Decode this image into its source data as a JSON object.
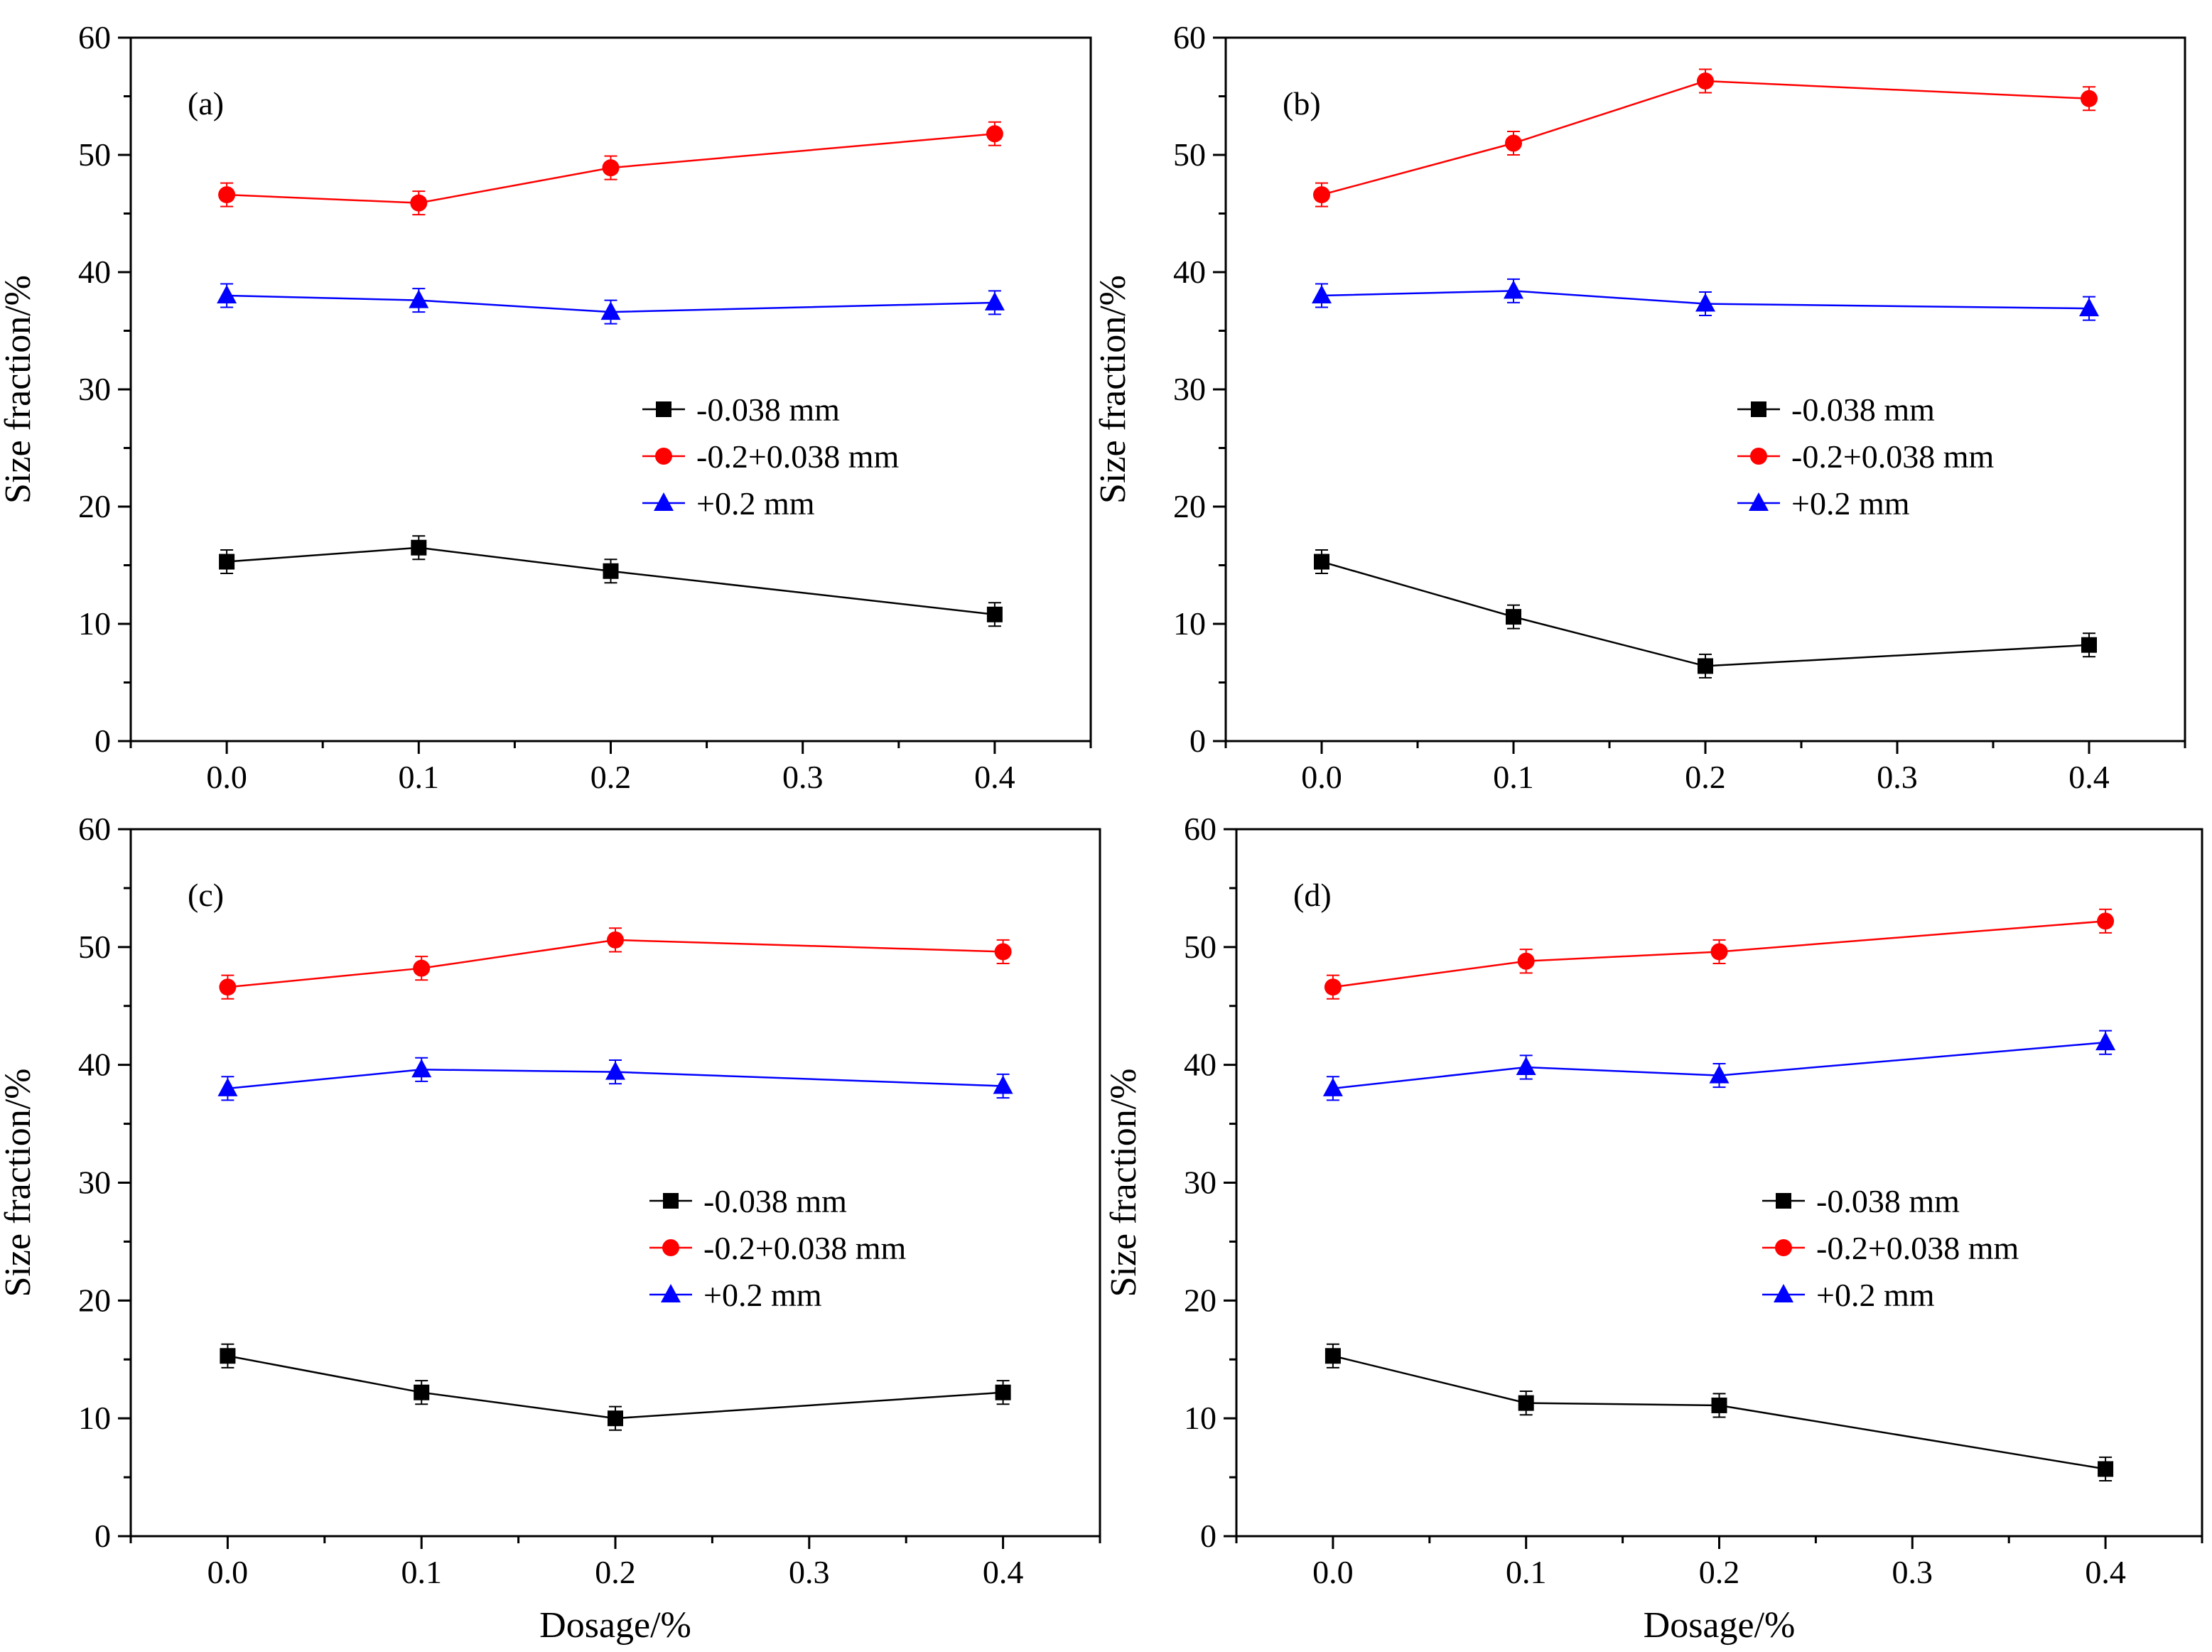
{
  "figure": {
    "shared_xlabel": "Dosage/%",
    "ylabel": "Size fraction/%"
  },
  "chart_data": [
    {
      "type": "line",
      "panel_label": "(a)",
      "x": [
        0.0,
        0.1,
        0.2,
        0.4
      ],
      "xlim": [
        -0.05,
        0.45
      ],
      "ylim": [
        0,
        60
      ],
      "xticks": [
        "0.0",
        "0.1",
        "0.2",
        "0.3",
        "0.4"
      ],
      "yticks": [
        "0",
        "10",
        "20",
        "30",
        "40",
        "50",
        "60"
      ],
      "xlabel": "",
      "ylabel": "Size fraction/%",
      "legend_position": "center-right",
      "series": [
        {
          "name": "-0.038 mm",
          "marker": "square",
          "color": "#000000",
          "values": [
            15.3,
            16.5,
            14.5,
            10.8
          ],
          "error": 1.0
        },
        {
          "name": "-0.2+0.038 mm",
          "marker": "circle",
          "color": "#ff0000",
          "values": [
            46.6,
            45.9,
            48.9,
            51.8
          ],
          "error": 1.0
        },
        {
          "name": "+0.2 mm",
          "marker": "triangle",
          "color": "#0000ff",
          "values": [
            38.0,
            37.6,
            36.6,
            37.4
          ],
          "error": 1.0
        }
      ]
    },
    {
      "type": "line",
      "panel_label": "(b)",
      "x": [
        0.0,
        0.1,
        0.2,
        0.4
      ],
      "xlim": [
        -0.05,
        0.45
      ],
      "ylim": [
        0,
        60
      ],
      "xticks": [
        "0.0",
        "0.1",
        "0.2",
        "0.3",
        "0.4"
      ],
      "yticks": [
        "0",
        "10",
        "20",
        "30",
        "40",
        "50",
        "60"
      ],
      "xlabel": "",
      "ylabel": "Size fraction/%",
      "legend_position": "center-right",
      "series": [
        {
          "name": "-0.038 mm",
          "marker": "square",
          "color": "#000000",
          "values": [
            15.3,
            10.6,
            6.4,
            8.2
          ],
          "error": 1.0
        },
        {
          "name": "-0.2+0.038 mm",
          "marker": "circle",
          "color": "#ff0000",
          "values": [
            46.6,
            51.0,
            56.3,
            54.8
          ],
          "error": 1.0
        },
        {
          "name": "+0.2 mm",
          "marker": "triangle",
          "color": "#0000ff",
          "values": [
            38.0,
            38.4,
            37.3,
            36.9
          ],
          "error": 1.0
        }
      ]
    },
    {
      "type": "line",
      "panel_label": "(c)",
      "x": [
        0.0,
        0.1,
        0.2,
        0.4
      ],
      "xlim": [
        -0.05,
        0.45
      ],
      "ylim": [
        0,
        60
      ],
      "xticks": [
        "0.0",
        "0.1",
        "0.2",
        "0.3",
        "0.4"
      ],
      "yticks": [
        "0",
        "10",
        "20",
        "30",
        "40",
        "50",
        "60"
      ],
      "xlabel": "Dosage/%",
      "ylabel": "Size fraction/%",
      "legend_position": "center-right",
      "series": [
        {
          "name": "-0.038 mm",
          "marker": "square",
          "color": "#000000",
          "values": [
            15.3,
            12.2,
            10.0,
            12.2
          ],
          "error": 1.0
        },
        {
          "name": "-0.2+0.038 mm",
          "marker": "circle",
          "color": "#ff0000",
          "values": [
            46.6,
            48.2,
            50.6,
            49.6
          ],
          "error": 1.0
        },
        {
          "name": "+0.2 mm",
          "marker": "triangle",
          "color": "#0000ff",
          "values": [
            38.0,
            39.6,
            39.4,
            38.2
          ],
          "error": 1.0
        }
      ]
    },
    {
      "type": "line",
      "panel_label": "(d)",
      "x": [
        0.0,
        0.1,
        0.2,
        0.4
      ],
      "xlim": [
        -0.05,
        0.45
      ],
      "ylim": [
        0,
        60
      ],
      "xticks": [
        "0.0",
        "0.1",
        "0.2",
        "0.3",
        "0.4"
      ],
      "yticks": [
        "0",
        "10",
        "20",
        "30",
        "40",
        "50",
        "60"
      ],
      "xlabel": "Dosage/%",
      "ylabel": "Size fraction/%",
      "legend_position": "center-right",
      "series": [
        {
          "name": "-0.038 mm",
          "marker": "square",
          "color": "#000000",
          "values": [
            15.3,
            11.3,
            11.1,
            5.7
          ],
          "error": 1.0
        },
        {
          "name": "-0.2+0.038 mm",
          "marker": "circle",
          "color": "#ff0000",
          "values": [
            46.6,
            48.8,
            49.6,
            52.2
          ],
          "error": 1.0
        },
        {
          "name": "+0.2 mm",
          "marker": "triangle",
          "color": "#0000ff",
          "values": [
            38.0,
            39.8,
            39.1,
            41.9
          ],
          "error": 1.0
        }
      ]
    }
  ]
}
